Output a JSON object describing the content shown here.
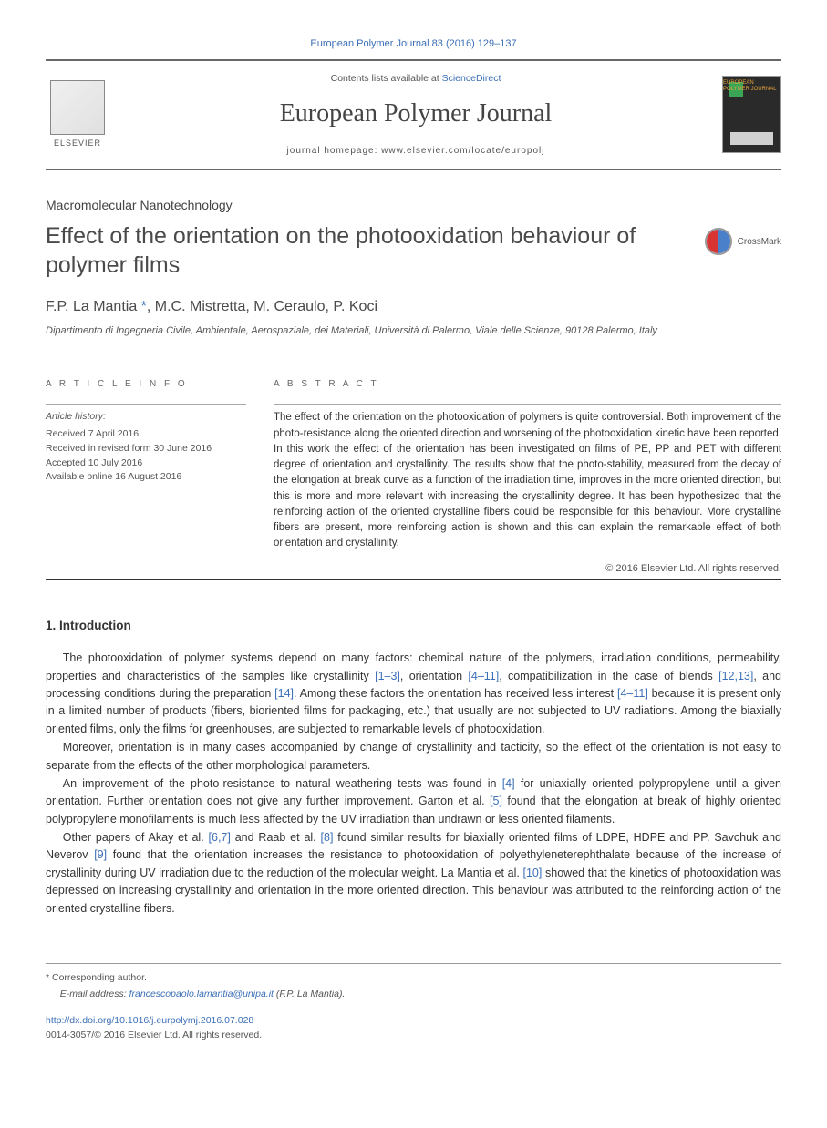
{
  "citation": "European Polymer Journal 83 (2016) 129–137",
  "header": {
    "contents_prefix": "Contents lists available at ",
    "contents_link": "ScienceDirect",
    "journal_name": "European Polymer Journal",
    "homepage_label": "journal homepage: www.elsevier.com/locate/europolj",
    "publisher": "ELSEVIER",
    "cover_text": "EUROPEAN\nPOLYMER\nJOURNAL"
  },
  "article_type": "Macromolecular Nanotechnology",
  "title": "Effect of the orientation on the photooxidation behaviour of polymer films",
  "crossmark_label": "CrossMark",
  "authors": "F.P. La Mantia",
  "authors_rest": ", M.C. Mistretta, M. Ceraulo, P. Koci",
  "corr_marker": " *",
  "affiliation": "Dipartimento di Ingegneria Civile, Ambientale, Aerospaziale, dei Materiali, Università di Palermo, Viale delle Scienze, 90128 Palermo, Italy",
  "info": {
    "heading": "A R T I C L E   I N F O",
    "history_label": "Article history:",
    "received": "Received 7 April 2016",
    "revised": "Received in revised form 30 June 2016",
    "accepted": "Accepted 10 July 2016",
    "online": "Available online 16 August 2016"
  },
  "abstract": {
    "heading": "A B S T R A C T",
    "text": "The effect of the orientation on the photooxidation of polymers is quite controversial. Both improvement of the photo-resistance along the oriented direction and worsening of the photooxidation kinetic have been reported. In this work the effect of the orientation has been investigated on films of PE, PP and PET with different degree of orientation and crystallinity. The results show that the photo-stability, measured from the decay of the elongation at break curve as a function of the irradiation time, improves in the more oriented direction, but this is more and more relevant with increasing the crystallinity degree. It has been hypothesized that the reinforcing action of the oriented crystalline fibers could be responsible for this behaviour. More crystalline fibers are present, more reinforcing action is shown and this can explain the remarkable effect of both orientation and crystallinity.",
    "copyright": "© 2016 Elsevier Ltd. All rights reserved."
  },
  "section1": {
    "heading": "1. Introduction",
    "p1_a": "The photooxidation of polymer systems depend on many factors: chemical nature of the polymers, irradiation conditions, permeability, properties and characteristics of the samples like crystallinity ",
    "ref1": "[1–3]",
    "p1_b": ", orientation ",
    "ref2": "[4–11]",
    "p1_c": ", compatibilization in the case of blends ",
    "ref3": "[12,13]",
    "p1_d": ", and processing conditions during the preparation ",
    "ref4": "[14]",
    "p1_e": ". Among these factors the orientation has received less interest ",
    "ref5": "[4–11]",
    "p1_f": " because it is present only in a limited number of products (fibers, bioriented films for packaging, etc.) that usually are not subjected to UV radiations. Among the biaxially oriented films, only the films for greenhouses, are subjected to remarkable levels of photooxidation.",
    "p2": "Moreover, orientation is in many cases accompanied by change of crystallinity and tacticity, so the effect of the orientation is not easy to separate from the effects of the other morphological parameters.",
    "p3_a": "An improvement of the photo-resistance to natural weathering tests was found in ",
    "ref6": "[4]",
    "p3_b": " for uniaxially oriented polypropylene until a given orientation. Further orientation does not give any further improvement. Garton et al. ",
    "ref7": "[5]",
    "p3_c": " found that the elongation at break of highly oriented polypropylene monofilaments is much less affected by the UV irradiation than undrawn or less oriented filaments.",
    "p4_a": "Other papers of Akay et al. ",
    "ref8": "[6,7]",
    "p4_b": " and Raab et al. ",
    "ref9": "[8]",
    "p4_c": " found similar results for biaxially oriented films of LDPE, HDPE and PP. Savchuk and Neverov ",
    "ref10": "[9]",
    "p4_d": " found that the orientation increases the resistance to photooxidation of polyethyleneterephthalate because of the increase of crystallinity during UV irradiation due to the reduction of the molecular weight. La Mantia et al. ",
    "ref11": "[10]",
    "p4_e": " showed that the kinetics of photooxidation was depressed on increasing crystallinity and orientation in the more oriented direction. This behaviour was attributed to the reinforcing action of the oriented crystalline fibers."
  },
  "footer": {
    "corr_marker": "*",
    "corr_label": " Corresponding author.",
    "email_label": "E-mail address: ",
    "email": "francescopaolo.lamantia@unipa.it",
    "email_suffix": " (F.P. La Mantia).",
    "doi": "http://dx.doi.org/10.1016/j.eurpolymj.2016.07.028",
    "issn": "0014-3057/© 2016 Elsevier Ltd. All rights reserved."
  },
  "colors": {
    "link": "#3b6fb6",
    "text": "#333333",
    "muted": "#555555",
    "border": "#686868"
  }
}
